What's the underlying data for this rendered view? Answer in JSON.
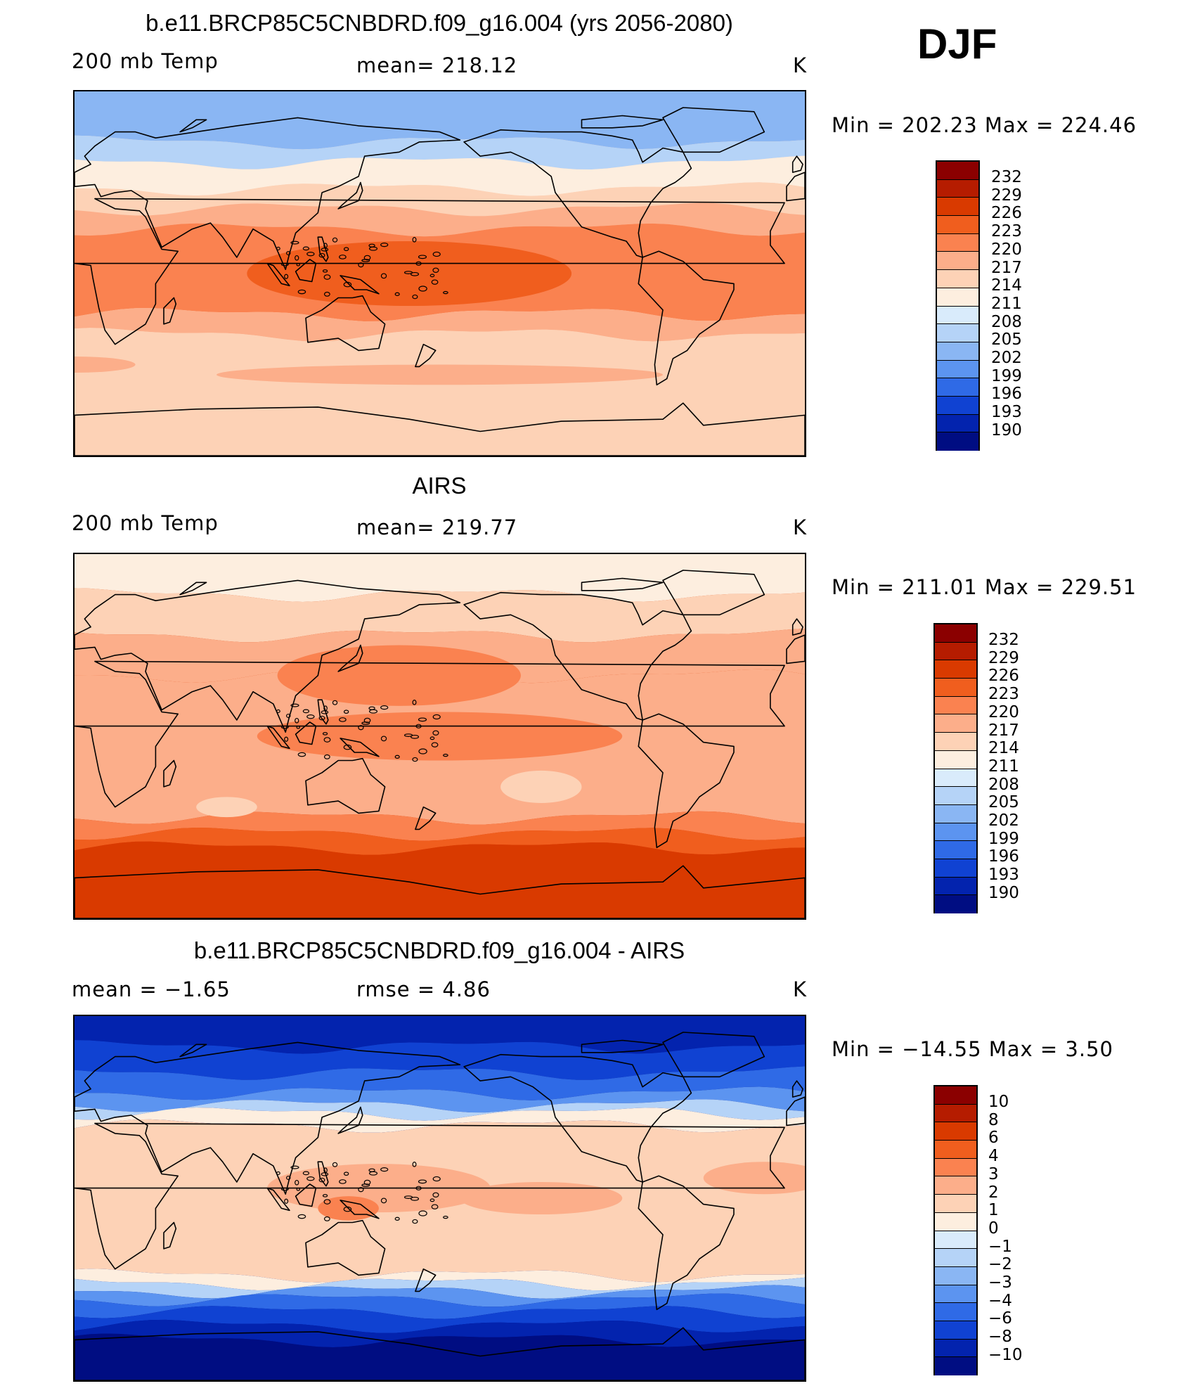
{
  "season": "DJF",
  "panels": [
    {
      "title": "b.e11.BRCP85C5CNBDRD.f09_g16.004 (yrs 2056-2080)",
      "left_label": "200  mb  Temp",
      "center_label": "mean=  218.12",
      "right_label": "K",
      "minmax": "Min  =  202.23  Max  =  224.46",
      "colorbar": {
        "labels": [
          "232",
          "229",
          "226",
          "223",
          "220",
          "217",
          "214",
          "211",
          "208",
          "205",
          "202",
          "199",
          "196",
          "193",
          "190"
        ],
        "colors": [
          "#8b0000",
          "#b51c00",
          "#d93a00",
          "#f05e1e",
          "#fa8250",
          "#fcae8a",
          "#fdd2b6",
          "#fdeedf",
          "#d9ebfb",
          "#b5d3f7",
          "#8ab6f3",
          "#5c94f0",
          "#2f6ae6",
          "#1042d2",
          "#0323ae",
          "#000d82"
        ]
      },
      "map": {
        "field_type": "model",
        "bands": [
          {
            "lat": 90,
            "color": "#8ab6f3"
          },
          {
            "lat": 65,
            "color": "#b5d3f7"
          },
          {
            "lat": 55,
            "color": "#fdeedf"
          },
          {
            "lat": 42,
            "color": "#fdd2b6"
          },
          {
            "lat": 32,
            "color": "#fcae8a"
          },
          {
            "lat": 22,
            "color": "#fa8250"
          },
          {
            "lat": -20,
            "color": "#fcae8a"
          },
          {
            "lat": -30,
            "color": "#fdd2b6"
          },
          {
            "lat": -90,
            "color": "#fdd2b6"
          }
        ],
        "blobs": [
          {
            "lon": 165,
            "lat": 0,
            "rlon": 80,
            "rlat": 16,
            "color": "#f05e1e"
          },
          {
            "lon": 180,
            "lat": -50,
            "rlon": 110,
            "rlat": 5,
            "color": "#fcae8a"
          },
          {
            "lon": 0,
            "lat": -45,
            "rlon": 30,
            "rlat": 4,
            "color": "#fcae8a"
          }
        ]
      }
    },
    {
      "title": "AIRS",
      "left_label": "200  mb  Temp",
      "center_label": "mean=  219.77",
      "right_label": "K",
      "minmax": "Min  =  211.01  Max  =  229.51",
      "colorbar": {
        "labels": [
          "232",
          "229",
          "226",
          "223",
          "220",
          "217",
          "214",
          "211",
          "208",
          "205",
          "202",
          "199",
          "196",
          "193",
          "190"
        ],
        "colors": [
          "#8b0000",
          "#b51c00",
          "#d93a00",
          "#f05e1e",
          "#fa8250",
          "#fcae8a",
          "#fdd2b6",
          "#fdeedf",
          "#d9ebfb",
          "#b5d3f7",
          "#8ab6f3",
          "#5c94f0",
          "#2f6ae6",
          "#1042d2",
          "#0323ae",
          "#000d82"
        ]
      },
      "map": {
        "field_type": "obs",
        "bands": [
          {
            "lat": 90,
            "color": "#fdeedf"
          },
          {
            "lat": 70,
            "color": "#fdd2b6"
          },
          {
            "lat": 50,
            "color": "#fcae8a"
          },
          {
            "lat": 30,
            "color": "#fcae8a"
          },
          {
            "lat": -40,
            "color": "#fa8250"
          },
          {
            "lat": -48,
            "color": "#f05e1e"
          },
          {
            "lat": -55,
            "color": "#d93a00"
          },
          {
            "lat": -90,
            "color": "#d93a00"
          }
        ],
        "blobs": [
          {
            "lon": 160,
            "lat": 30,
            "rlon": 60,
            "rlat": 15,
            "color": "#fa8250"
          },
          {
            "lon": 180,
            "lat": 0,
            "rlon": 90,
            "rlat": 12,
            "color": "#fa8250"
          },
          {
            "lon": 230,
            "lat": -25,
            "rlon": 20,
            "rlat": 8,
            "color": "#fdd2b6"
          },
          {
            "lon": 75,
            "lat": -35,
            "rlon": 15,
            "rlat": 5,
            "color": "#fdd2b6"
          }
        ]
      }
    },
    {
      "title": "b.e11.BRCP85C5CNBDRD.f09_g16.004 - AIRS",
      "left_label": "mean  =    −1.65",
      "center_label": "rmse  =    4.86",
      "right_label": "K",
      "minmax": "Min  =  −14.55  Max  =     3.50",
      "colorbar": {
        "labels": [
          "10",
          "8",
          "6",
          "4",
          "3",
          "2",
          "1",
          "0",
          "−1",
          "−2",
          "−3",
          "−4",
          "−6",
          "−8",
          "−10"
        ],
        "colors": [
          "#8b0000",
          "#b51c00",
          "#d93a00",
          "#f05e1e",
          "#fa8250",
          "#fcae8a",
          "#fdd2b6",
          "#fdeedf",
          "#d9ebfb",
          "#b5d3f7",
          "#8ab6f3",
          "#5c94f0",
          "#2f6ae6",
          "#1042d2",
          "#0323ae",
          "#000d82"
        ]
      },
      "map": {
        "field_type": "difference",
        "bands": [
          {
            "lat": 90,
            "color": "#0323ae"
          },
          {
            "lat": 75,
            "color": "#1042d2"
          },
          {
            "lat": 62,
            "color": "#2f6ae6"
          },
          {
            "lat": 52,
            "color": "#5c94f0"
          },
          {
            "lat": 46,
            "color": "#b5d3f7"
          },
          {
            "lat": 42,
            "color": "#fdeedf"
          },
          {
            "lat": 36,
            "color": "#fdd2b6"
          },
          {
            "lat": -38,
            "color": "#fdeedf"
          },
          {
            "lat": -42,
            "color": "#b5d3f7"
          },
          {
            "lat": -46,
            "color": "#5c94f0"
          },
          {
            "lat": -50,
            "color": "#2f6ae6"
          },
          {
            "lat": -56,
            "color": "#1042d2"
          },
          {
            "lat": -63,
            "color": "#0323ae"
          },
          {
            "lat": -70,
            "color": "#000d82"
          },
          {
            "lat": -90,
            "color": "#000d82"
          }
        ],
        "blobs": [
          {
            "lon": 150,
            "lat": 5,
            "rlon": 55,
            "rlat": 12,
            "color": "#fcae8a"
          },
          {
            "lon": 230,
            "lat": 0,
            "rlon": 40,
            "rlat": 8,
            "color": "#fcae8a"
          },
          {
            "lon": 135,
            "lat": -5,
            "rlon": 15,
            "rlat": 6,
            "color": "#fa8250"
          },
          {
            "lon": 340,
            "lat": 10,
            "rlon": 30,
            "rlat": 8,
            "color": "#fcae8a"
          }
        ]
      }
    }
  ]
}
